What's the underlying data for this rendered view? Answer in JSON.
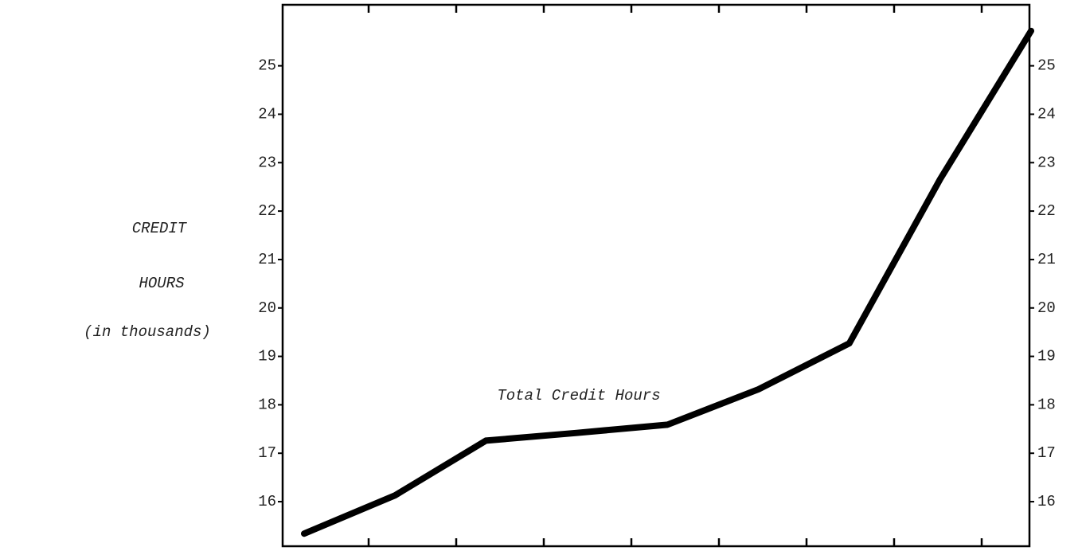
{
  "chart_data": {
    "type": "line",
    "ylabel": [
      "CREDIT",
      "HOURS",
      "(in thousands)"
    ],
    "annotation": "Total Credit Hours",
    "categories": [
      null,
      null,
      null,
      null,
      null,
      null,
      null,
      null,
      null
    ],
    "series": [
      {
        "name": "Total Credit Hours",
        "color": "#000000",
        "values": [
          15.34,
          16.13,
          17.26,
          17.42,
          17.59,
          18.32,
          19.27,
          22.66,
          25.72
        ]
      }
    ],
    "ylim": [
      15.08,
      26.26
    ],
    "yticks": [
      16,
      17,
      18,
      19,
      20,
      21,
      22,
      23,
      24,
      25
    ],
    "y2ticks": [
      16,
      17,
      18,
      19,
      20,
      21,
      22,
      23,
      24,
      25
    ],
    "grid": false
  }
}
